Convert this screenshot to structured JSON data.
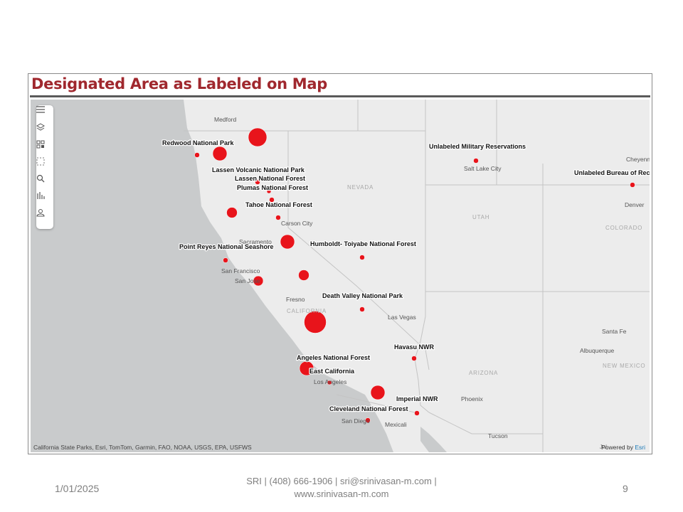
{
  "title": "Designated Area as Labeled on Map",
  "map": {
    "attribution": "California State Parks, Esri, TomTom, Garmin, FAO, NOAA, USGS, EPA, USFWS",
    "powered_by": "Powered by ",
    "powered_brand": "Esri",
    "partial_label": "Jul",
    "toolbar_icons": [
      "menu-icon",
      "layers-icon",
      "qr-legend-icon",
      "select-icon",
      "search-icon",
      "chart-icon",
      "user-icon"
    ],
    "city_labels": [
      "Medford",
      "Salt Lake City",
      "Cheyenne",
      "Denver",
      "Carson City",
      "Sacramento",
      "San Francisco",
      "San Jose",
      "Fresno",
      "Las Vegas",
      "Santa Fe",
      "Albuquerque",
      "Los Angeles",
      "Phoenix",
      "San Diego",
      "Mexicali",
      "Tucson"
    ],
    "state_labels": [
      "NEVADA",
      "UTAH",
      "COLORADO",
      "CALIFORNIA",
      "ARIZONA",
      "NEW MEXICO"
    ],
    "area_labels": [
      "Redwood National Park",
      "Lassen Volcanic National Park",
      "Lassen National Forest",
      "Plumas National Forest",
      "Tahoe National Forest",
      "Point Reyes National Seashore",
      "Humboldt- Toiyabe National Forest",
      "Death Valley National Park",
      "Angeles National Forest",
      "East California",
      "Havasu NWR",
      "Imperial NWR",
      "Cleveland National Forest",
      "Unlabeled Military Reservations",
      "Unlabeled Bureau of Recl"
    ],
    "marker_color": "#e8141b"
  },
  "footer": {
    "date": "1/01/2025",
    "contact_line1": "SRI | (408) 666-1906 | sri@srinivasan-m.com |",
    "contact_line2": "www.srinivasan-m.com",
    "page": "9"
  }
}
